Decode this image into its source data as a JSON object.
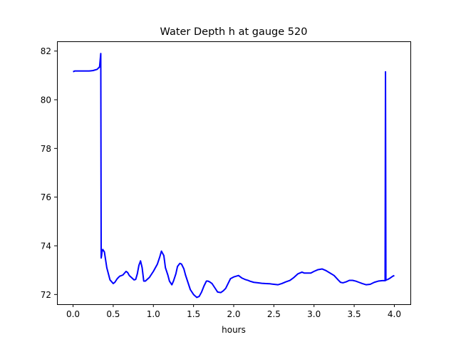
{
  "chart_data": {
    "type": "line",
    "title": "Water Depth h at gauge 520",
    "xlabel": "hours",
    "ylabel": "",
    "xlim": [
      -0.2,
      4.2
    ],
    "ylim": [
      71.6,
      82.4
    ],
    "xticks": [
      0.0,
      0.5,
      1.0,
      1.5,
      2.0,
      2.5,
      3.0,
      3.5,
      4.0
    ],
    "xtick_labels": [
      "0.0",
      "0.5",
      "1.0",
      "1.5",
      "2.0",
      "2.5",
      "3.0",
      "3.5",
      "4.0"
    ],
    "yticks": [
      72,
      74,
      76,
      78,
      80,
      82
    ],
    "ytick_labels": [
      "72",
      "74",
      "76",
      "78",
      "80",
      "82"
    ],
    "grid": false,
    "series": [
      {
        "color": "#0000ff",
        "x": [
          0.0,
          0.02,
          0.1,
          0.2,
          0.25,
          0.3,
          0.33,
          0.345,
          0.35,
          0.355,
          0.36,
          0.37,
          0.39,
          0.42,
          0.46,
          0.5,
          0.52,
          0.55,
          0.58,
          0.62,
          0.66,
          0.68,
          0.7,
          0.72,
          0.76,
          0.78,
          0.8,
          0.82,
          0.84,
          0.86,
          0.88,
          0.9,
          0.95,
          1.0,
          1.05,
          1.08,
          1.1,
          1.13,
          1.15,
          1.18,
          1.2,
          1.23,
          1.25,
          1.28,
          1.3,
          1.33,
          1.35,
          1.38,
          1.4,
          1.43,
          1.46,
          1.5,
          1.54,
          1.57,
          1.6,
          1.63,
          1.66,
          1.68,
          1.7,
          1.73,
          1.75,
          1.78,
          1.8,
          1.84,
          1.87,
          1.9,
          1.93,
          1.96,
          2.0,
          2.03,
          2.06,
          2.1,
          2.14,
          2.18,
          2.2,
          2.25,
          2.3,
          2.35,
          2.4,
          2.45,
          2.5,
          2.55,
          2.6,
          2.65,
          2.7,
          2.75,
          2.8,
          2.85,
          2.88,
          2.92,
          2.96,
          3.0,
          3.05,
          3.1,
          3.15,
          3.2,
          3.25,
          3.3,
          3.33,
          3.36,
          3.4,
          3.44,
          3.48,
          3.52,
          3.56,
          3.6,
          3.65,
          3.7,
          3.75,
          3.8,
          3.85,
          3.885,
          3.89,
          3.895,
          3.9,
          3.92,
          3.95,
          3.98,
          4.0
        ],
        "y": [
          81.15,
          81.18,
          81.18,
          81.18,
          81.2,
          81.25,
          81.35,
          81.9,
          73.5,
          73.6,
          73.75,
          73.85,
          73.75,
          73.1,
          72.6,
          72.45,
          72.5,
          72.65,
          72.75,
          72.8,
          72.95,
          72.9,
          72.78,
          72.72,
          72.6,
          72.62,
          72.85,
          73.2,
          73.38,
          73.1,
          72.55,
          72.55,
          72.7,
          72.95,
          73.25,
          73.55,
          73.78,
          73.6,
          73.1,
          72.8,
          72.55,
          72.4,
          72.55,
          72.85,
          73.15,
          73.28,
          73.25,
          73.05,
          72.8,
          72.5,
          72.2,
          72.0,
          71.88,
          71.92,
          72.1,
          72.35,
          72.55,
          72.55,
          72.52,
          72.45,
          72.35,
          72.2,
          72.1,
          72.08,
          72.15,
          72.25,
          72.45,
          72.65,
          72.72,
          72.75,
          72.78,
          72.68,
          72.62,
          72.58,
          72.55,
          72.5,
          72.48,
          72.46,
          72.45,
          72.44,
          72.42,
          72.4,
          72.45,
          72.52,
          72.58,
          72.7,
          72.85,
          72.92,
          72.88,
          72.88,
          72.88,
          72.95,
          73.02,
          73.05,
          72.98,
          72.88,
          72.78,
          72.6,
          72.5,
          72.48,
          72.52,
          72.58,
          72.58,
          72.55,
          72.5,
          72.45,
          72.4,
          72.42,
          72.5,
          72.55,
          72.57,
          72.57,
          81.15,
          72.58,
          72.6,
          72.62,
          72.68,
          72.75,
          72.78
        ]
      }
    ]
  }
}
